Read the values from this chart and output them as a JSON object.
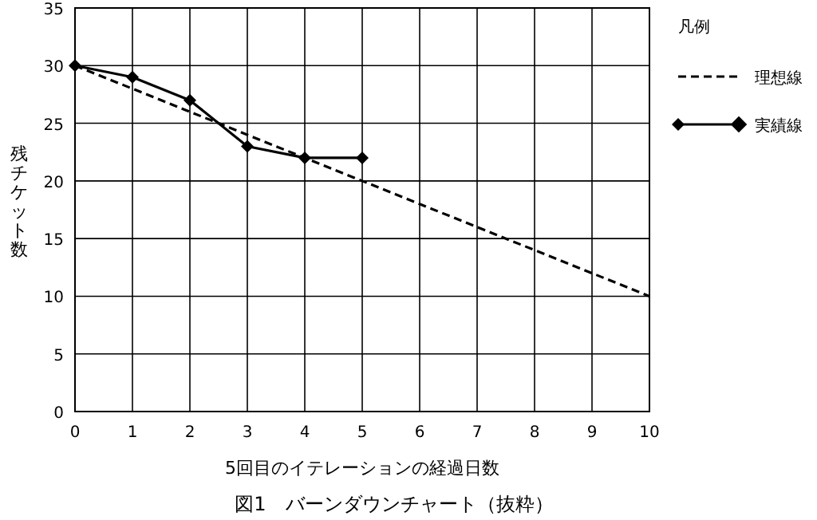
{
  "chart_data": {
    "type": "line",
    "title": "図1　バーンダウンチャート（抜粋）",
    "xlabel": "5回目のイテレーションの経過日数",
    "ylabel": "残チケット数",
    "legend_title": "凡例",
    "series": [
      {
        "name": "理想線",
        "color": "#000000",
        "x": [
          0,
          10
        ],
        "values": [
          30,
          10
        ],
        "line_style": "dashed"
      },
      {
        "name": "実績線",
        "color": "#000000",
        "x": [
          0,
          1,
          2,
          3,
          4,
          5
        ],
        "values": [
          30,
          29,
          27,
          23,
          22,
          22
        ],
        "line_style": "solid",
        "marker": "diamond"
      }
    ],
    "xlim": [
      0,
      10
    ],
    "xticks": [
      0,
      1,
      2,
      3,
      4,
      5,
      6,
      7,
      8,
      9,
      10
    ],
    "ylim": [
      0,
      35
    ],
    "yticks": [
      0,
      5,
      10,
      15,
      20,
      25,
      30,
      35
    ],
    "grid": true,
    "legend": "top right"
  }
}
